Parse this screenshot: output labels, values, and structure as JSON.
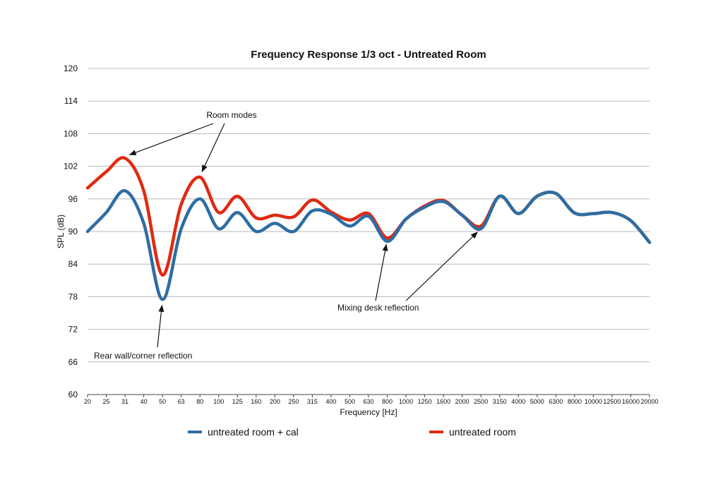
{
  "chart_data": {
    "type": "line",
    "title": "Frequency Response 1/3 oct - Untreated Room",
    "xlabel": "Frequency [Hz]",
    "ylabel": "SPL (dB)",
    "ylim": [
      60,
      120
    ],
    "yticks": [
      "60",
      "66",
      "72",
      "78",
      "84",
      "90",
      "96",
      "102",
      "108",
      "114",
      "120"
    ],
    "categories": [
      "20",
      "25",
      "31",
      "40",
      "50",
      "63",
      "80",
      "100",
      "125",
      "160",
      "200",
      "250",
      "315",
      "400",
      "500",
      "630",
      "800",
      "1000",
      "1250",
      "1600",
      "2000",
      "2500",
      "3150",
      "4000",
      "5000",
      "6300",
      "8000",
      "10000",
      "12500",
      "16000",
      "20000"
    ],
    "grid": true,
    "legend_position": "bottom",
    "colors": {
      "cal": "#2e6da4",
      "untreated": "#e02a12",
      "grid": "#b8b8b8"
    },
    "series": [
      {
        "name": "untreated room + cal",
        "values": [
          90,
          93.5,
          97.5,
          91.5,
          77.5,
          90.5,
          96,
          90.5,
          93.5,
          90,
          91.5,
          90,
          93.8,
          93.2,
          91,
          92.8,
          88.2,
          92.3,
          94.5,
          95.5,
          93,
          90.5,
          96.5,
          93.3,
          96.5,
          97,
          93.4,
          93.3,
          93.5,
          92,
          88
        ]
      },
      {
        "name": "untreated room",
        "values": [
          98,
          101,
          103.5,
          97.5,
          82,
          95,
          100,
          93.5,
          96.5,
          92.5,
          93,
          92.7,
          95.8,
          93.6,
          92.1,
          93.3,
          88.8,
          92.3,
          94.7,
          95.7,
          93,
          91,
          96.5,
          93.3,
          96.5,
          97,
          93.4,
          93.3,
          93.5,
          92,
          88
        ]
      }
    ],
    "annotations": [
      {
        "text": "Room modes",
        "targets": [
          [
            31,
            103.8
          ],
          [
            80,
            100.2
          ]
        ]
      },
      {
        "text": "Rear wall/corner reflection",
        "targets": [
          [
            50,
            77.3
          ]
        ]
      },
      {
        "text": "Mixing desk reflection",
        "targets": [
          [
            800,
            88.5
          ],
          [
            2500,
            90.5
          ]
        ]
      }
    ]
  }
}
